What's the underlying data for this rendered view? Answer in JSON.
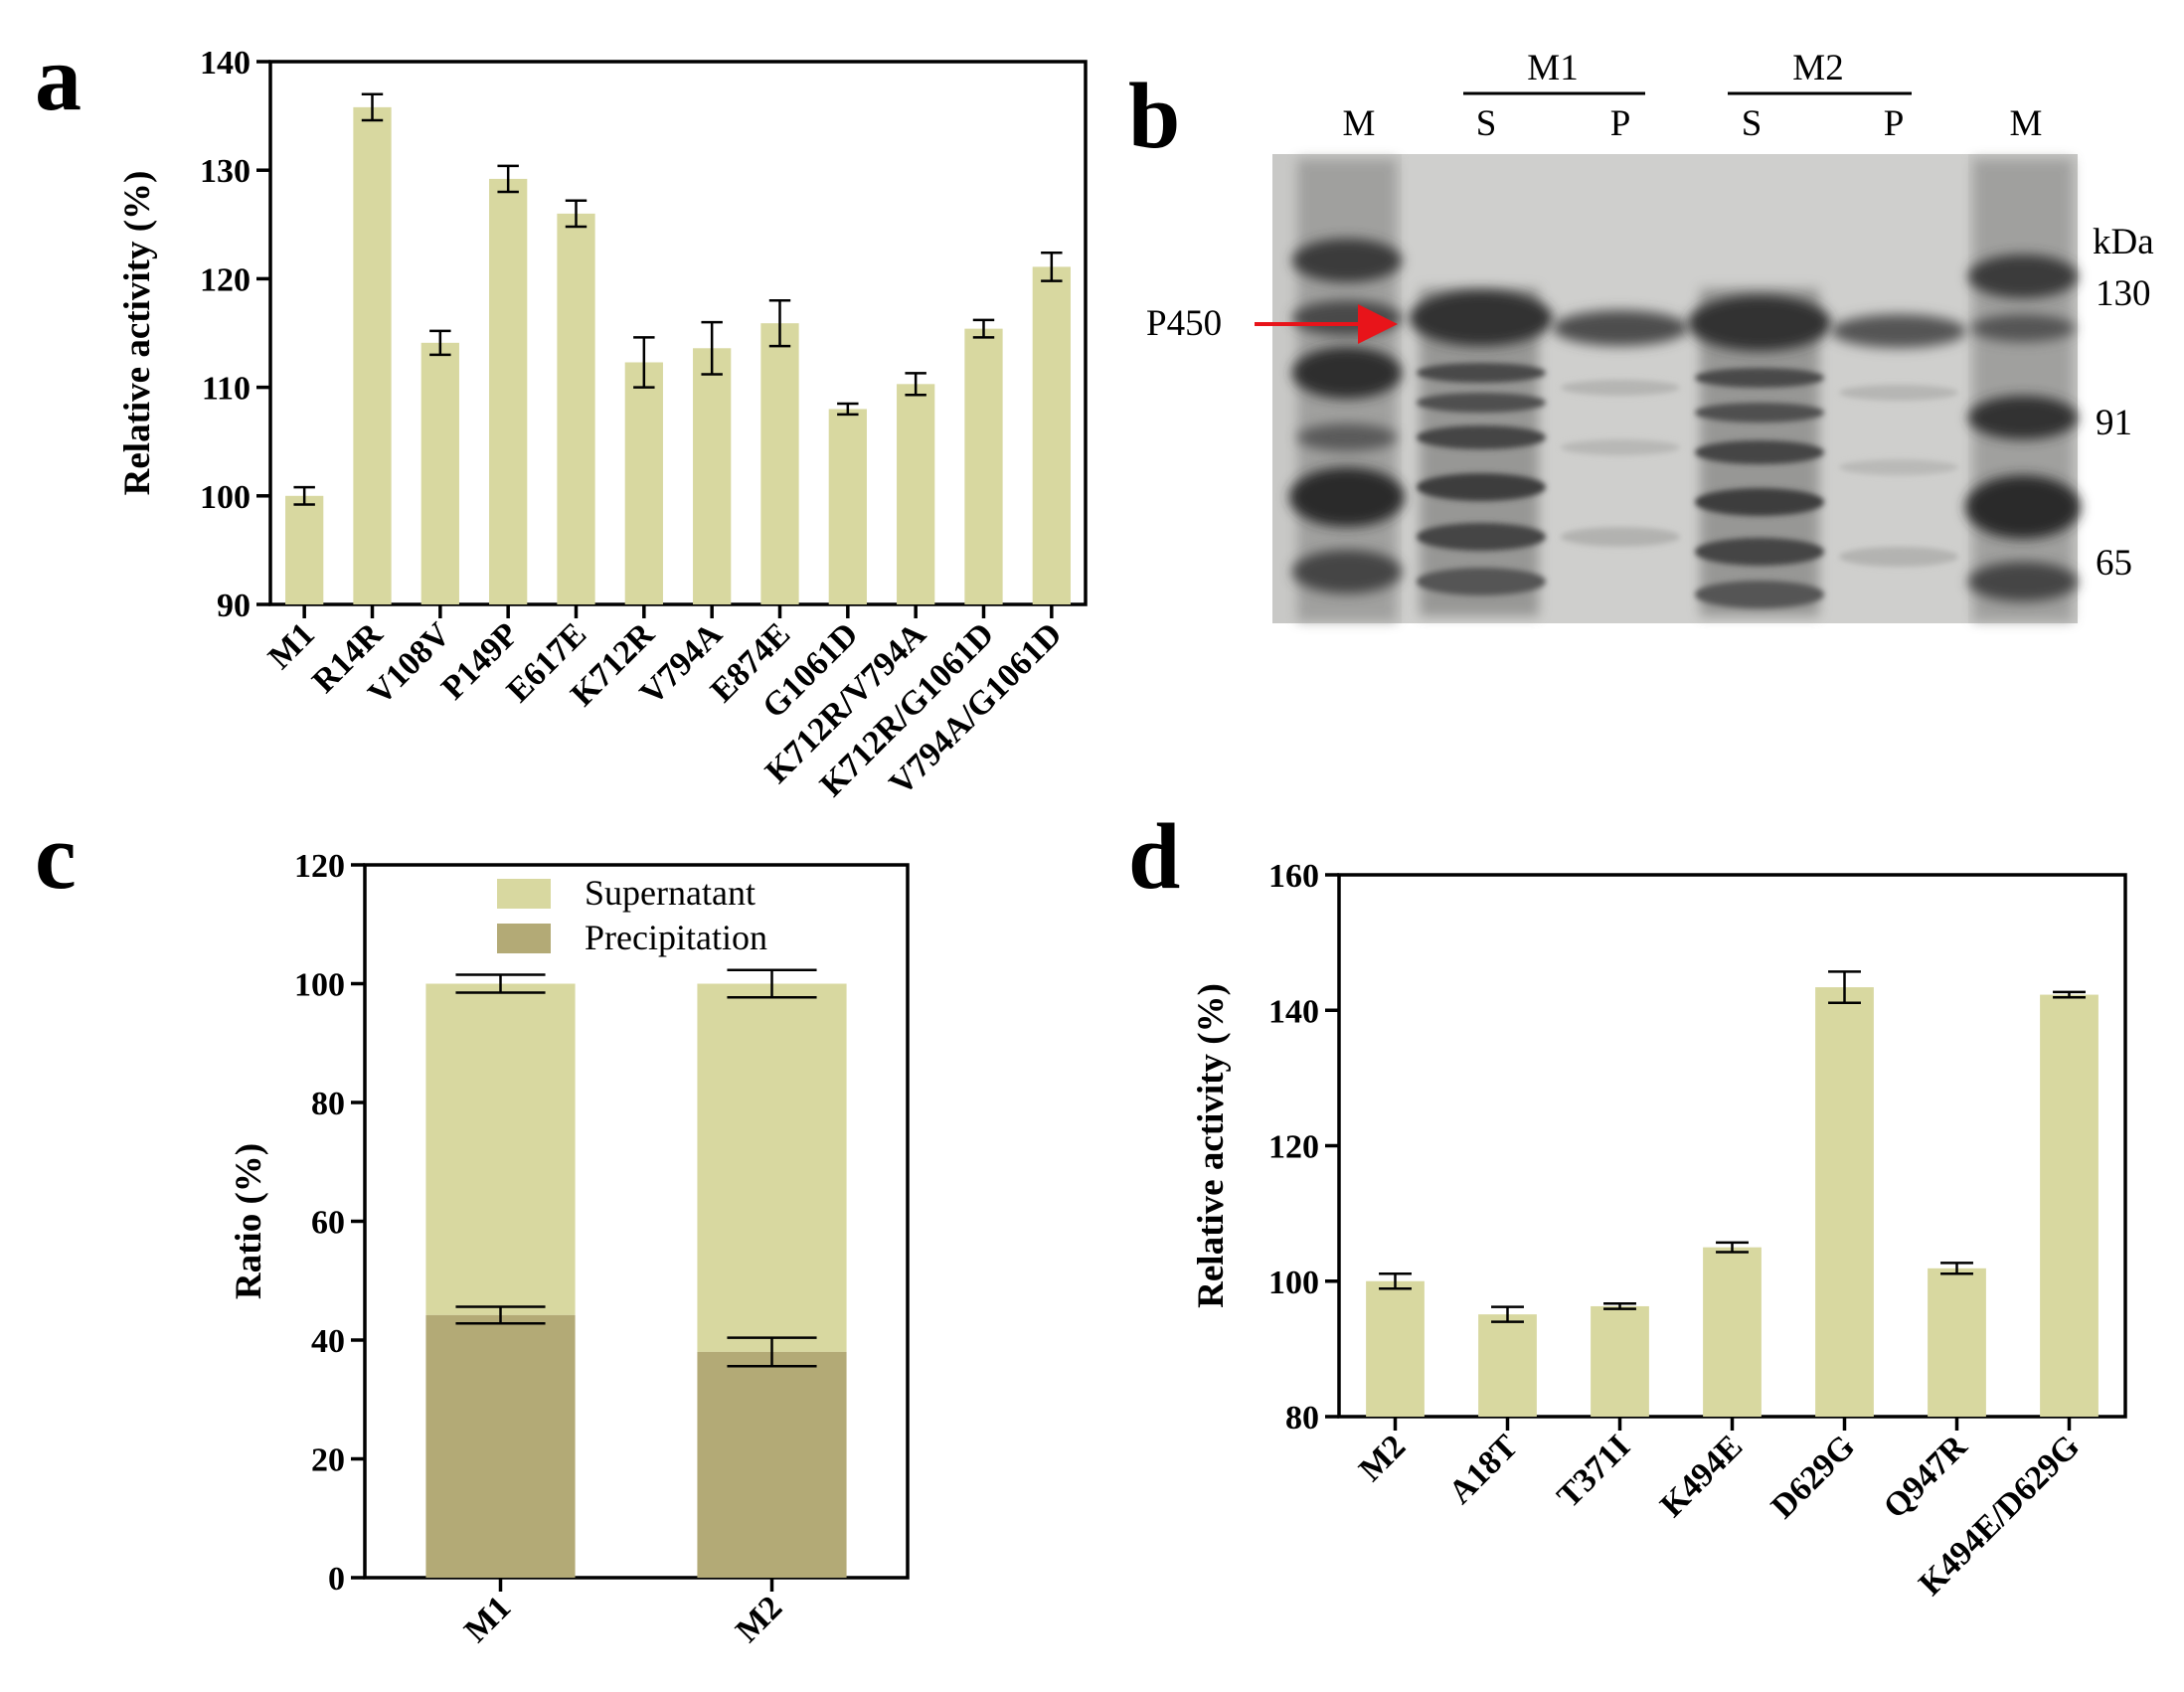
{
  "panel_labels": [
    "a",
    "b",
    "c",
    "d"
  ],
  "colors": {
    "bar_light": "#d8d8a0",
    "bar_dark": "#b3aa76",
    "axis": "#000000",
    "arrow": "#e8141a",
    "gel_bg": "#c9c9c9"
  },
  "chart_data": [
    {
      "panel": "a",
      "type": "bar",
      "categories": [
        "M1",
        "R14R",
        "V108V",
        "P149P",
        "E617E",
        "K712R",
        "V794A",
        "E874E",
        "G1061D",
        "K712R/V794A",
        "K712R/G1061D",
        "V794A/G1061D"
      ],
      "values": [
        100.0,
        135.8,
        114.1,
        129.2,
        126.0,
        112.3,
        113.6,
        115.9,
        108.0,
        110.3,
        115.4,
        121.1
      ],
      "errors": [
        0.8,
        1.2,
        1.1,
        1.2,
        1.2,
        2.3,
        2.4,
        2.1,
        0.5,
        1.0,
        0.8,
        1.3
      ],
      "ylabel": "Relative activity (%)",
      "ylim": [
        90,
        140
      ],
      "yticks": [
        "90",
        "100",
        "110",
        "120",
        "130",
        "140"
      ]
    },
    {
      "panel": "c",
      "type": "bar",
      "stacked": true,
      "categories": [
        "M1",
        "M2"
      ],
      "series": [
        {
          "name": "Supernatant",
          "values": [
            55.8,
            62.0
          ],
          "errors": [
            1.5,
            2.3
          ]
        },
        {
          "name": "Precipitation",
          "values": [
            44.2,
            38.0
          ],
          "errors": [
            1.4,
            2.4
          ]
        }
      ],
      "ylabel": "Ratio (%)",
      "ylim": [
        0,
        120
      ],
      "yticks": [
        "0",
        "20",
        "40",
        "60",
        "80",
        "100",
        "120"
      ],
      "legend": [
        "Supernatant",
        "Precipitation"
      ]
    },
    {
      "panel": "d",
      "type": "bar",
      "categories": [
        "M2",
        "A18T",
        "T371I",
        "K494E",
        "D629G",
        "Q947R",
        "K494E/D629G"
      ],
      "values": [
        100.0,
        95.1,
        96.3,
        105.0,
        143.4,
        101.9,
        142.3
      ],
      "errors": [
        1.1,
        1.1,
        0.4,
        0.7,
        2.3,
        0.8,
        0.4
      ],
      "ylabel": "Relative activity (%)",
      "ylim": [
        80,
        160
      ],
      "yticks": [
        "80",
        "100",
        "120",
        "140",
        "160"
      ]
    }
  ],
  "gel": {
    "group_labels": [
      "M1",
      "M2"
    ],
    "lane_labels": [
      "M",
      "S",
      "P",
      "S",
      "P",
      "M"
    ],
    "band_label": "P450",
    "unit": "kDa",
    "markers": [
      "130",
      "91",
      "65"
    ]
  }
}
